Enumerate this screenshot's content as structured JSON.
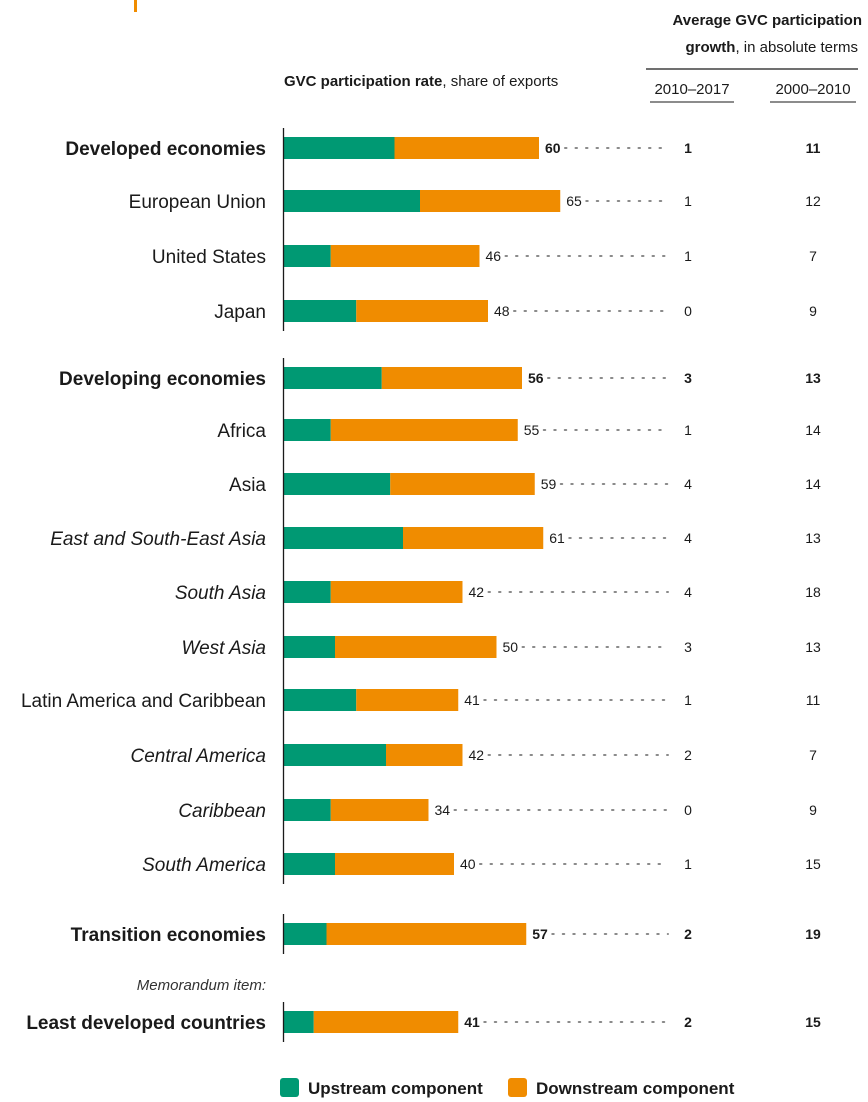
{
  "colors": {
    "upstream": "#009973",
    "downstream": "#f08c00",
    "accent": "#f08c00",
    "axis": "#1a1a1a"
  },
  "headers": {
    "rate_title_bold": "GVC participation rate",
    "rate_title_rest": ", share of exports",
    "growth_title_line1": "Average GVC participation",
    "growth_title_line2_bold": "growth",
    "growth_title_line2_rest": ", in absolute terms",
    "col1": "2010–2017",
    "col2": "2000–2010"
  },
  "memo_label": "Memorandum item:",
  "legend": {
    "upstream": "Upstream component",
    "downstream": "Downstream component"
  },
  "chart_data": {
    "type": "bar",
    "orientation": "horizontal",
    "stacked": true,
    "xlim": [
      0,
      100
    ],
    "categories": [
      "Developed economies",
      "European Union",
      "United States",
      "Japan",
      "Developing economies",
      "Africa",
      "Asia",
      "East and South-East Asia",
      "South Asia",
      "West Asia",
      "Latin America and Caribbean",
      "Central America",
      "Caribbean",
      "South America",
      "Transition economies",
      "Least developed countries"
    ],
    "styles": [
      "bold",
      "normal",
      "normal",
      "normal",
      "bold",
      "normal",
      "normal",
      "italic",
      "italic",
      "italic",
      "normal",
      "italic",
      "italic",
      "italic",
      "bold",
      "bold"
    ],
    "groups": [
      0,
      0,
      0,
      0,
      1,
      1,
      1,
      1,
      1,
      1,
      1,
      1,
      1,
      1,
      2,
      3
    ],
    "series": [
      {
        "name": "Upstream component",
        "values": [
          26,
          32,
          11,
          17,
          23,
          11,
          25,
          28,
          11,
          12,
          17,
          24,
          11,
          12,
          10,
          7
        ]
      },
      {
        "name": "Downstream component",
        "values": [
          34,
          33,
          35,
          31,
          33,
          44,
          34,
          33,
          31,
          38,
          24,
          18,
          23,
          28,
          47,
          34
        ]
      }
    ],
    "totals": [
      60,
      65,
      46,
      48,
      56,
      55,
      59,
      61,
      42,
      50,
      41,
      42,
      34,
      40,
      57,
      41
    ],
    "growth_2010_2017": [
      1,
      1,
      1,
      0,
      3,
      1,
      4,
      4,
      4,
      3,
      1,
      2,
      0,
      1,
      2,
      2
    ],
    "growth_2000_2010": [
      11,
      12,
      7,
      9,
      13,
      14,
      14,
      13,
      18,
      13,
      11,
      7,
      9,
      15,
      19,
      15
    ]
  }
}
